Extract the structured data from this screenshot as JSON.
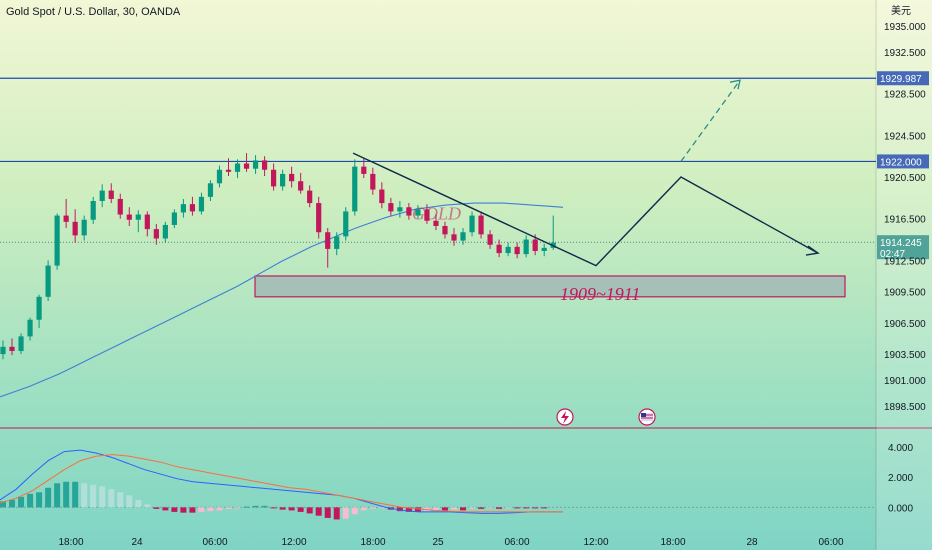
{
  "header": {
    "title": "Gold Spot / U.S. Dollar, 30, OANDA",
    "currency": "美元"
  },
  "annotations": {
    "gold_label": "GOLD",
    "zone_label": "1909~1911"
  },
  "price_levels": {
    "upper": "1929.987",
    "lower": "1922.000",
    "current": "1914.245",
    "countdown": "02:47"
  },
  "colors": {
    "up": "#089981",
    "down": "#c2185b",
    "level_line": "#1e4aa8",
    "ma_line": "#3f7fd6",
    "macd_line": "#2962ff",
    "signal_line": "#ff6d3b",
    "zone_border": "#c2185b"
  },
  "chart_data": [
    {
      "type": "candlestick",
      "y_ticks": [
        "1935.000",
        "1932.500",
        "1928.500",
        "1924.500",
        "1920.500",
        "1916.500",
        "1912.500",
        "1909.500",
        "1906.500",
        "1903.500",
        "1901.000",
        "1898.500"
      ],
      "x_ticks": [
        "18:00",
        "24",
        "06:00",
        "12:00",
        "18:00",
        "25",
        "06:00",
        "12:00",
        "18:00",
        "28",
        "06:00"
      ],
      "ylim": [
        1896.5,
        1937.5
      ],
      "candles": [
        [
          1903.5,
          1904.8,
          1903.0,
          1904.2
        ],
        [
          1904.2,
          1905.0,
          1903.4,
          1903.8
        ],
        [
          1903.8,
          1905.5,
          1903.5,
          1905.2
        ],
        [
          1905.2,
          1907.0,
          1904.8,
          1906.8
        ],
        [
          1906.8,
          1909.2,
          1906.0,
          1909.0
        ],
        [
          1909.0,
          1912.5,
          1908.6,
          1912.0
        ],
        [
          1912.0,
          1917.0,
          1911.6,
          1916.8
        ],
        [
          1916.8,
          1918.4,
          1915.6,
          1916.2
        ],
        [
          1916.2,
          1917.4,
          1914.2,
          1914.9
        ],
        [
          1914.9,
          1916.8,
          1914.4,
          1916.4
        ],
        [
          1916.4,
          1918.6,
          1916.0,
          1918.2
        ],
        [
          1918.2,
          1919.8,
          1917.6,
          1919.2
        ],
        [
          1919.2,
          1919.9,
          1918.0,
          1918.4
        ],
        [
          1918.4,
          1918.9,
          1916.5,
          1916.9
        ],
        [
          1916.9,
          1917.6,
          1915.8,
          1916.4
        ],
        [
          1916.4,
          1917.3,
          1915.2,
          1916.9
        ],
        [
          1916.9,
          1917.2,
          1914.8,
          1915.5
        ],
        [
          1915.5,
          1916.0,
          1914.0,
          1914.6
        ],
        [
          1914.6,
          1916.2,
          1914.2,
          1915.9
        ],
        [
          1915.9,
          1917.4,
          1915.6,
          1917.1
        ],
        [
          1917.1,
          1918.4,
          1916.6,
          1917.9
        ],
        [
          1917.9,
          1918.6,
          1916.8,
          1917.2
        ],
        [
          1917.2,
          1919.0,
          1916.9,
          1918.6
        ],
        [
          1918.6,
          1920.2,
          1918.2,
          1919.9
        ],
        [
          1919.9,
          1921.6,
          1919.5,
          1921.2
        ],
        [
          1921.2,
          1922.3,
          1920.6,
          1921.0
        ],
        [
          1921.0,
          1922.2,
          1920.4,
          1921.8
        ],
        [
          1921.8,
          1922.8,
          1921.0,
          1921.3
        ],
        [
          1921.3,
          1922.6,
          1920.8,
          1922.1
        ],
        [
          1922.1,
          1922.5,
          1920.6,
          1921.2
        ],
        [
          1921.2,
          1921.8,
          1919.2,
          1919.6
        ],
        [
          1919.6,
          1921.2,
          1919.2,
          1920.8
        ],
        [
          1920.8,
          1921.5,
          1919.5,
          1920.1
        ],
        [
          1920.1,
          1920.9,
          1918.9,
          1919.2
        ],
        [
          1919.2,
          1919.7,
          1917.6,
          1918.0
        ],
        [
          1918.0,
          1918.6,
          1914.6,
          1915.2
        ],
        [
          1915.2,
          1915.6,
          1911.8,
          1913.6
        ],
        [
          1913.6,
          1915.2,
          1913.0,
          1914.8
        ],
        [
          1914.8,
          1917.6,
          1914.4,
          1917.2
        ],
        [
          1917.2,
          1922.2,
          1916.8,
          1921.5
        ],
        [
          1921.5,
          1922.3,
          1920.4,
          1920.8
        ],
        [
          1920.8,
          1921.4,
          1918.8,
          1919.3
        ],
        [
          1919.3,
          1920.0,
          1917.5,
          1918.0
        ],
        [
          1918.0,
          1918.5,
          1916.8,
          1917.2
        ],
        [
          1917.2,
          1918.2,
          1916.6,
          1917.6
        ],
        [
          1917.6,
          1918.0,
          1916.4,
          1916.8
        ],
        [
          1916.8,
          1917.8,
          1916.5,
          1917.4
        ],
        [
          1917.4,
          1917.9,
          1916.0,
          1916.3
        ],
        [
          1916.3,
          1916.9,
          1915.4,
          1915.8
        ],
        [
          1915.8,
          1916.2,
          1914.6,
          1915.0
        ],
        [
          1915.0,
          1915.6,
          1913.9,
          1914.4
        ],
        [
          1914.4,
          1915.6,
          1914.0,
          1915.2
        ],
        [
          1915.2,
          1917.2,
          1914.8,
          1916.8
        ],
        [
          1916.8,
          1917.2,
          1914.6,
          1915.0
        ],
        [
          1915.0,
          1915.4,
          1913.6,
          1914.0
        ],
        [
          1914.0,
          1914.5,
          1912.8,
          1913.2
        ],
        [
          1913.2,
          1914.2,
          1912.9,
          1913.8
        ],
        [
          1913.8,
          1914.2,
          1912.7,
          1913.1
        ],
        [
          1913.1,
          1914.9,
          1912.8,
          1914.5
        ],
        [
          1914.5,
          1915.0,
          1913.0,
          1913.4
        ],
        [
          1913.4,
          1914.1,
          1912.9,
          1913.7
        ],
        [
          1913.7,
          1916.8,
          1913.5,
          1914.2
        ]
      ],
      "moving_average": [
        1899.4,
        1899.9,
        1900.4,
        1901.0,
        1901.6,
        1902.3,
        1903.0,
        1903.7,
        1904.4,
        1905.1,
        1905.8,
        1906.5,
        1907.2,
        1907.9,
        1908.6,
        1909.3,
        1910.0,
        1910.8,
        1911.6,
        1912.4,
        1913.1,
        1913.8,
        1914.4,
        1915.0,
        1915.6,
        1916.1,
        1916.6,
        1917.0,
        1917.4,
        1917.6,
        1917.8,
        1917.9,
        1918.0,
        1918.0,
        1918.0,
        1917.9,
        1917.8,
        1917.7,
        1917.6
      ],
      "upper_level": 1929.987,
      "lower_level": 1922.0,
      "current_price": 1914.245,
      "zone": [
        1909.0,
        1911.0
      ],
      "projection": [
        [
          1922.8,
          1912.9
        ],
        [
          1912.0,
          1912.0
        ],
        [
          1920.5,
          1922.0
        ],
        [
          1913.2,
          1913.2
        ]
      ],
      "dashed_target": 1929.8
    },
    {
      "type": "macd",
      "y_ticks": [
        "4.000",
        "2.000",
        "0.000"
      ],
      "ylim": [
        -1.5,
        5.0
      ],
      "histogram": [
        0.4,
        0.5,
        0.7,
        0.9,
        1.0,
        1.3,
        1.6,
        1.7,
        1.7,
        1.6,
        1.5,
        1.4,
        1.2,
        1.0,
        0.8,
        0.5,
        0.2,
        -0.1,
        -0.2,
        -0.3,
        -0.35,
        -0.35,
        -0.3,
        -0.25,
        -0.2,
        -0.1,
        -0.05,
        0.05,
        0.1,
        0.1,
        -0.05,
        -0.15,
        -0.2,
        -0.3,
        -0.4,
        -0.55,
        -0.7,
        -0.8,
        -0.75,
        -0.45,
        -0.2,
        -0.1,
        -0.05,
        -0.15,
        -0.25,
        -0.3,
        -0.3,
        -0.25,
        -0.2,
        -0.2,
        -0.15,
        -0.2,
        -0.1,
        -0.1,
        -0.05,
        -0.1,
        -0.05,
        -0.05,
        -0.05,
        -0.05,
        -0.05
      ],
      "macd_line": [
        0.5,
        1.2,
        2.2,
        3.1,
        3.7,
        3.8,
        3.6,
        3.3,
        2.9,
        2.5,
        2.2,
        1.9,
        1.7,
        1.6,
        1.5,
        1.4,
        1.3,
        1.2,
        1.1,
        1.0,
        0.9,
        0.8,
        0.6,
        0.3,
        0.0,
        -0.2,
        -0.3,
        -0.3,
        -0.3,
        -0.35,
        -0.4,
        -0.4,
        -0.35,
        -0.3,
        -0.3,
        -0.3
      ],
      "signal_line": [
        0.3,
        0.6,
        1.1,
        1.8,
        2.5,
        3.1,
        3.4,
        3.5,
        3.4,
        3.2,
        3.0,
        2.7,
        2.5,
        2.3,
        2.1,
        1.9,
        1.7,
        1.5,
        1.3,
        1.2,
        1.0,
        0.8,
        0.6,
        0.4,
        0.2,
        0.0,
        -0.1,
        -0.2,
        -0.25,
        -0.3,
        -0.3,
        -0.3,
        -0.3,
        -0.3,
        -0.3,
        -0.3
      ]
    }
  ]
}
